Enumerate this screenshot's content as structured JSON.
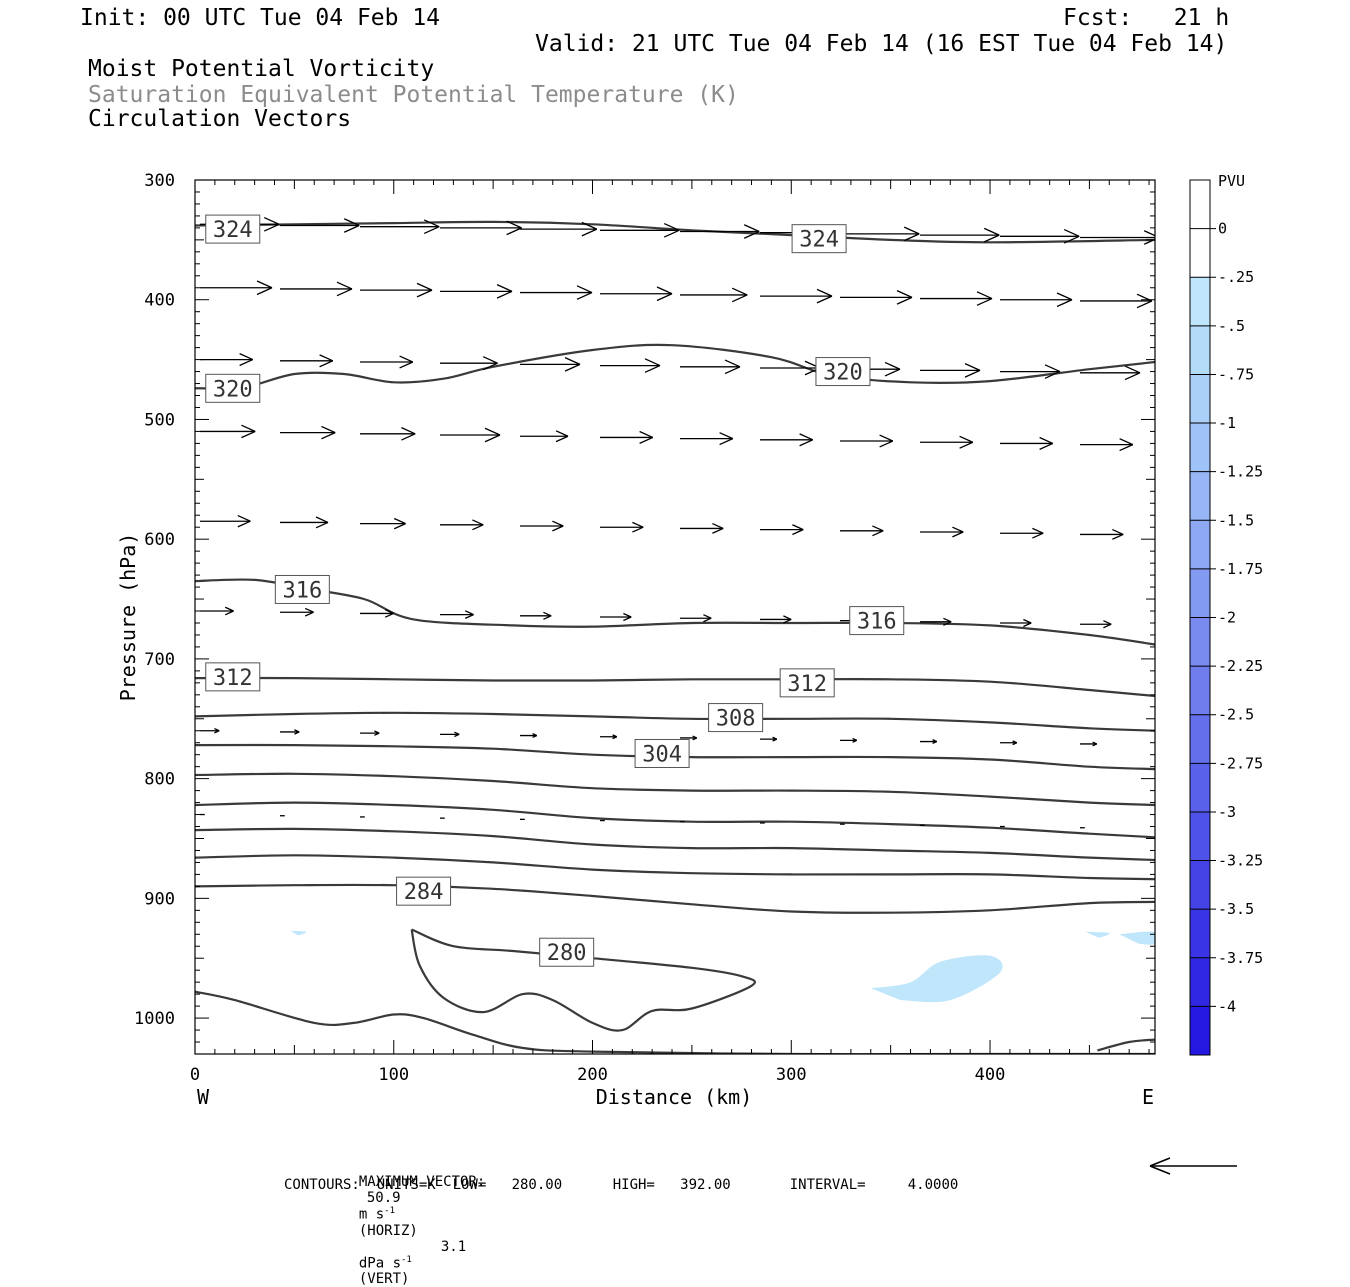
{
  "header": {
    "init": "Init: 00 UTC Tue 04 Feb 14",
    "fcst": "Fcst:   21 h",
    "valid": "Valid: 21 UTC Tue 04 Feb 14 (16 EST Tue 04 Feb 14)",
    "field1": "Moist Potential Vorticity",
    "field2": "Saturation Equivalent Potential Temperature (K)",
    "field3": "Circulation Vectors"
  },
  "footer": {
    "max_vector_label": "MAXIMUM VECTOR:",
    "max_horiz_value": "50.9",
    "max_horiz_units": "m s",
    "max_horiz_exp": "-1",
    "max_horiz_tag": "(HORIZ)",
    "max_vert_value": "3.1",
    "max_vert_units": "dPa s",
    "max_vert_exp": "-1",
    "max_vert_tag": "(VERT)",
    "contours_line": "CONTOURS:  UNITS=K  LOW=   280.00      HIGH=   392.00       INTERVAL=     4.0000"
  },
  "chart_data": {
    "type": "cross-section",
    "xlabel": "Distance (km)",
    "ylabel": "Pressure (hPa)",
    "xlim": [
      0,
      483
    ],
    "ylim": [
      1030,
      300
    ],
    "x_ticks": [
      0,
      100,
      200,
      300,
      400
    ],
    "y_ticks": [
      300,
      400,
      500,
      600,
      700,
      800,
      900,
      1000
    ],
    "x_end_labels": {
      "left": "W",
      "right": "E"
    },
    "contour_color": "#3a3a3a",
    "vector_color": "#000000",
    "shade_color": "#bfe6fb",
    "contours": [
      {
        "label": "324",
        "points": [
          [
            0,
            338
          ],
          [
            50,
            337
          ],
          [
            100,
            336
          ],
          [
            150,
            335
          ],
          [
            200,
            337
          ],
          [
            250,
            342
          ],
          [
            300,
            346
          ],
          [
            350,
            350
          ],
          [
            400,
            352
          ],
          [
            483,
            350
          ]
        ],
        "labels_at": [
          [
            19,
            341
          ],
          [
            314,
            349
          ]
        ]
      },
      {
        "label": "320",
        "points": [
          [
            0,
            474
          ],
          [
            25,
            473
          ],
          [
            50,
            462
          ],
          [
            75,
            462
          ],
          [
            100,
            469
          ],
          [
            125,
            466
          ],
          [
            150,
            456
          ],
          [
            200,
            442
          ],
          [
            240,
            438
          ],
          [
            290,
            448
          ],
          [
            320,
            463
          ],
          [
            360,
            469
          ],
          [
            400,
            468
          ],
          [
            450,
            458
          ],
          [
            483,
            452
          ]
        ],
        "labels_at": [
          [
            19,
            474
          ],
          [
            326,
            460
          ]
        ]
      },
      {
        "label": "316",
        "points": [
          [
            0,
            635
          ],
          [
            30,
            634
          ],
          [
            55,
            641
          ],
          [
            85,
            650
          ],
          [
            110,
            667
          ],
          [
            160,
            672
          ],
          [
            200,
            673
          ],
          [
            250,
            670
          ],
          [
            300,
            670
          ],
          [
            350,
            670
          ],
          [
            400,
            672
          ],
          [
            450,
            680
          ],
          [
            483,
            688
          ]
        ],
        "labels_at": [
          [
            54,
            642
          ],
          [
            343,
            668
          ]
        ]
      },
      {
        "label": "312",
        "points": [
          [
            0,
            716
          ],
          [
            50,
            716
          ],
          [
            100,
            717
          ],
          [
            150,
            718
          ],
          [
            200,
            718
          ],
          [
            250,
            717
          ],
          [
            300,
            717
          ],
          [
            350,
            717
          ],
          [
            400,
            719
          ],
          [
            450,
            726
          ],
          [
            483,
            731
          ]
        ],
        "labels_at": [
          [
            19,
            715
          ],
          [
            308,
            720
          ]
        ]
      },
      {
        "label": "308",
        "points": [
          [
            0,
            748
          ],
          [
            50,
            746
          ],
          [
            100,
            745
          ],
          [
            150,
            746
          ],
          [
            200,
            748
          ],
          [
            250,
            750
          ],
          [
            300,
            750
          ],
          [
            350,
            750
          ],
          [
            400,
            753
          ],
          [
            450,
            758
          ],
          [
            483,
            760
          ]
        ],
        "labels_at": [
          [
            272,
            749
          ]
        ]
      },
      {
        "label": "304",
        "points": [
          [
            0,
            772
          ],
          [
            50,
            772
          ],
          [
            100,
            773
          ],
          [
            150,
            775
          ],
          [
            200,
            780
          ],
          [
            250,
            782
          ],
          [
            300,
            782
          ],
          [
            350,
            782
          ],
          [
            400,
            784
          ],
          [
            450,
            790
          ],
          [
            483,
            792
          ]
        ],
        "labels_at": [
          [
            235,
            779
          ]
        ]
      },
      {
        "label": "",
        "points": [
          [
            0,
            797
          ],
          [
            50,
            796
          ],
          [
            100,
            798
          ],
          [
            150,
            802
          ],
          [
            200,
            808
          ],
          [
            250,
            810
          ],
          [
            300,
            810
          ],
          [
            350,
            811
          ],
          [
            400,
            815
          ],
          [
            450,
            820
          ],
          [
            483,
            822
          ]
        ]
      },
      {
        "label": "",
        "points": [
          [
            0,
            822
          ],
          [
            50,
            820
          ],
          [
            100,
            822
          ],
          [
            150,
            826
          ],
          [
            200,
            833
          ],
          [
            250,
            836
          ],
          [
            300,
            836
          ],
          [
            350,
            838
          ],
          [
            400,
            841
          ],
          [
            450,
            846
          ],
          [
            483,
            849
          ]
        ]
      },
      {
        "label": "",
        "points": [
          [
            0,
            843
          ],
          [
            50,
            842
          ],
          [
            100,
            844
          ],
          [
            150,
            848
          ],
          [
            200,
            855
          ],
          [
            250,
            858
          ],
          [
            300,
            858
          ],
          [
            350,
            860
          ],
          [
            400,
            862
          ],
          [
            450,
            866
          ],
          [
            483,
            868
          ]
        ]
      },
      {
        "label": "",
        "points": [
          [
            0,
            866
          ],
          [
            50,
            864
          ],
          [
            100,
            866
          ],
          [
            150,
            870
          ],
          [
            200,
            876
          ],
          [
            250,
            879
          ],
          [
            300,
            880
          ],
          [
            350,
            880
          ],
          [
            400,
            880
          ],
          [
            450,
            883
          ],
          [
            483,
            884
          ]
        ]
      },
      {
        "label": "284",
        "points": [
          [
            0,
            890
          ],
          [
            50,
            889
          ],
          [
            100,
            889
          ],
          [
            150,
            892
          ],
          [
            200,
            898
          ],
          [
            250,
            905
          ],
          [
            300,
            911
          ],
          [
            350,
            912
          ],
          [
            400,
            910
          ],
          [
            450,
            904
          ],
          [
            483,
            903
          ]
        ],
        "labels_at": [
          [
            115,
            894
          ]
        ]
      },
      {
        "label": "280",
        "points": [
          [
            109,
            926
          ],
          [
            130,
            940
          ],
          [
            160,
            944
          ],
          [
            200,
            950
          ],
          [
            250,
            958
          ],
          [
            275,
            965
          ],
          [
            280,
            973
          ],
          [
            250,
            992
          ],
          [
            230,
            994
          ],
          [
            215,
            1010
          ],
          [
            200,
            1004
          ],
          [
            180,
            985
          ],
          [
            165,
            980
          ],
          [
            145,
            995
          ],
          [
            125,
            983
          ],
          [
            113,
            956
          ],
          [
            109,
            926
          ]
        ],
        "labels_at": [
          [
            187,
            945
          ]
        ]
      },
      {
        "label": "",
        "points": [
          [
            0,
            978
          ],
          [
            20,
            985
          ],
          [
            60,
            1004
          ],
          [
            80,
            1004
          ],
          [
            100,
            997
          ],
          [
            115,
            1000
          ],
          [
            140,
            1014
          ],
          [
            165,
            1025
          ],
          [
            200,
            1028
          ],
          [
            300,
            1030
          ],
          [
            400,
            1030
          ],
          [
            483,
            1030
          ]
        ]
      },
      {
        "label": "",
        "points": [
          [
            454,
            1027
          ],
          [
            470,
            1020
          ],
          [
            483,
            1018
          ]
        ]
      }
    ],
    "shaded_regions": [
      {
        "value": -0.25,
        "points": [
          [
            340,
            975
          ],
          [
            360,
            970
          ],
          [
            375,
            953
          ],
          [
            400,
            948
          ],
          [
            405,
            962
          ],
          [
            380,
            985
          ],
          [
            355,
            985
          ]
        ]
      },
      {
        "value": -0.25,
        "points": [
          [
            465,
            930
          ],
          [
            483,
            928
          ],
          [
            483,
            938
          ],
          [
            475,
            938
          ]
        ]
      },
      {
        "value": -0.25,
        "points": [
          [
            448,
            928
          ],
          [
            460,
            929
          ],
          [
            455,
            933
          ]
        ]
      },
      {
        "value": -0.25,
        "points": [
          [
            48,
            927
          ],
          [
            56,
            928
          ],
          [
            52,
            931
          ]
        ]
      }
    ],
    "vector_rows": [
      {
        "p": 337,
        "u": [
          0.33,
          0.33,
          0.33,
          0.34,
          0.32,
          0.33,
          0.33,
          0.33,
          0.33,
          0.33,
          0.33,
          0.33
        ]
      },
      {
        "p": 390,
        "u": [
          0.3,
          0.3,
          0.3,
          0.3,
          0.3,
          0.3,
          0.28,
          0.3,
          0.3,
          0.3,
          0.3,
          0.3
        ]
      },
      {
        "p": 450,
        "u": [
          0.22,
          0.22,
          0.22,
          0.24,
          0.25,
          0.25,
          0.25,
          0.25,
          0.25,
          0.25,
          0.25,
          0.25
        ]
      },
      {
        "p": 510,
        "u": [
          0.23,
          0.23,
          0.23,
          0.25,
          0.2,
          0.22,
          0.22,
          0.22,
          0.22,
          0.22,
          0.22,
          0.22
        ]
      },
      {
        "p": 585,
        "u": [
          0.21,
          0.2,
          0.19,
          0.18,
          0.18,
          0.18,
          0.18,
          0.18,
          0.18,
          0.18,
          0.18,
          0.18
        ]
      },
      {
        "p": 660,
        "u": [
          0.14,
          0.14,
          0.14,
          0.14,
          0.13,
          0.13,
          0.13,
          0.13,
          0.13,
          0.13,
          0.13,
          0.13
        ]
      },
      {
        "p": 760,
        "u": [
          0.08,
          0.08,
          0.08,
          0.08,
          0.07,
          0.07,
          0.07,
          0.07,
          0.07,
          0.07,
          0.07,
          0.07
        ]
      },
      {
        "p": 830,
        "u": [
          0.02,
          0.02,
          0.02,
          0.02,
          0.02,
          0.02,
          0.02,
          0.02,
          0.02,
          0.02,
          0.02,
          0.02
        ]
      }
    ],
    "colorbar": {
      "label": "PVU",
      "ticks": [
        "0",
        "-.25",
        "-.5",
        "-.75",
        "-1",
        "-1.25",
        "-1.5",
        "-1.75",
        "-2",
        "-2.25",
        "-2.5",
        "-2.75",
        "-3",
        "-3.25",
        "-3.5",
        "-3.75",
        "-4"
      ],
      "colors": [
        "#ffffff",
        "#ffffff",
        "#bfe6fb",
        "#b3dcf9",
        "#aad0f8",
        "#a0c3f7",
        "#98b6f5",
        "#8ea8f3",
        "#839af1",
        "#798bef",
        "#6f7ded",
        "#646fec",
        "#5960ea",
        "#4f52e8",
        "#4443e6",
        "#3a35e4",
        "#2f27e2",
        "#2518e0"
      ]
    },
    "reference_vector": {
      "direction": "left"
    }
  }
}
